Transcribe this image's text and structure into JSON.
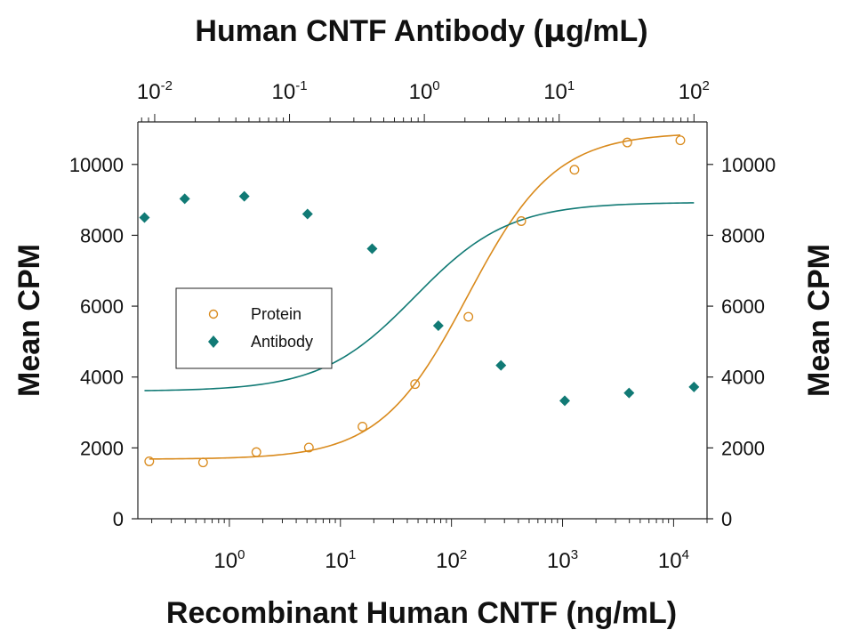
{
  "chart_data": {
    "type": "scatter",
    "top_xlabel_main": "Human CNTF Antibody (",
    "top_xlabel_mu": "μ",
    "top_xlabel_end": "g/mL)",
    "xlabel": "Recombinant Human CNTF (ng/mL)",
    "ylabel_left": "Mean CPM",
    "ylabel_right": "Mean CPM",
    "x_scale": "log",
    "x_bottom_range": [
      0.15,
      20000
    ],
    "x_top_range": [
      0.0075,
      125
    ],
    "ylim": [
      0,
      11200
    ],
    "y_ticks": [
      0,
      2000,
      4000,
      6000,
      8000,
      10000
    ],
    "y_tick_labels": [
      "0",
      "2000",
      "4000",
      "6000",
      "8000",
      "10000"
    ],
    "x_bottom_ticks": [
      1,
      10,
      100,
      1000,
      10000
    ],
    "x_bottom_tick_labels": [
      {
        "base": "10",
        "exp": "0"
      },
      {
        "base": "10",
        "exp": "1"
      },
      {
        "base": "10",
        "exp": "2"
      },
      {
        "base": "10",
        "exp": "3"
      },
      {
        "base": "10",
        "exp": "4"
      }
    ],
    "x_top_ticks": [
      0.01,
      0.1,
      1,
      10,
      100
    ],
    "x_top_tick_labels": [
      {
        "base": "10",
        "exp": "-2"
      },
      {
        "base": "10",
        "exp": "-1"
      },
      {
        "base": "10",
        "exp": "0"
      },
      {
        "base": "10",
        "exp": "1"
      },
      {
        "base": "10",
        "exp": "2"
      }
    ],
    "legend_position": "left-middle",
    "series": [
      {
        "name": "Protein",
        "axis": "bottom",
        "marker": "open-circle",
        "color": "#d98a1c",
        "x": [
          0.19,
          0.58,
          1.75,
          5.2,
          15.8,
          47,
          142,
          425,
          1280,
          3830,
          11500
        ],
        "y": [
          1620,
          1590,
          1880,
          2010,
          2600,
          3800,
          5700,
          8400,
          9850,
          10620,
          10680
        ],
        "fit": {
          "bottom": 1680,
          "top": 10900,
          "ec50": 140,
          "hill": 1.1
        }
      },
      {
        "name": "Antibody",
        "axis": "top",
        "marker": "filled-diamond",
        "color": "#117a75",
        "x": [
          0.0084,
          0.0167,
          0.0462,
          0.136,
          0.41,
          1.27,
          3.7,
          11.0,
          33.0,
          100
        ],
        "y": [
          8500,
          9030,
          9100,
          8600,
          7620,
          5450,
          4330,
          3330,
          3550,
          3720
        ],
        "fit": {
          "bottom": 3600,
          "top": 8930,
          "ec50": 0.85,
          "hill": 1.25
        }
      }
    ]
  }
}
